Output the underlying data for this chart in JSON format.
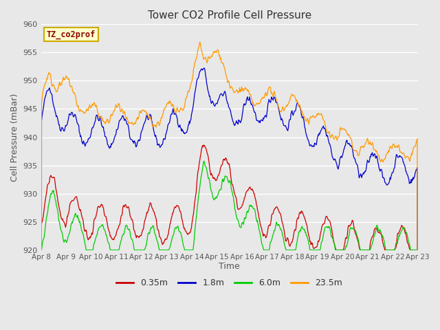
{
  "title": "Tower CO2 Profile Cell Pressure",
  "xlabel": "Time",
  "ylabel": "Cell Pressure (mBar)",
  "ylim": [
    920,
    960
  ],
  "yticks": [
    920,
    925,
    930,
    935,
    940,
    945,
    950,
    955,
    960
  ],
  "background_color": "#e8e8e8",
  "grid_color": "white",
  "annotation_text": "TZ_co2prof",
  "annotation_color": "#8B0000",
  "annotation_bg": "#ffffcc",
  "annotation_border": "#ccaa00",
  "series": [
    {
      "label": "0.35m",
      "color": "#cc0000"
    },
    {
      "label": "1.8m",
      "color": "#0000cc"
    },
    {
      "label": "6.0m",
      "color": "#00cc00"
    },
    {
      "label": "23.5m",
      "color": "#ff9900"
    }
  ],
  "xtick_labels": [
    "Apr 8",
    "Apr 9",
    "Apr 10",
    "Apr 11",
    "Apr 12",
    "Apr 13",
    "Apr 14",
    "Apr 15",
    "Apr 16",
    "Apr 17",
    "Apr 18",
    "Apr 19",
    "Apr 20",
    "Apr 21",
    "Apr 22",
    "Apr 23"
  ],
  "n_days": 15,
  "pts_per_day": 48
}
